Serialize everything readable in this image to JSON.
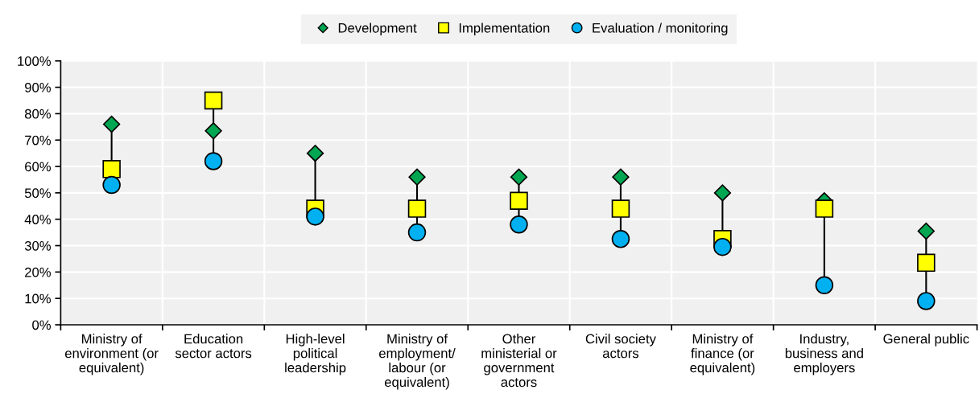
{
  "chart_data": {
    "type": "scatter",
    "categories": [
      "Ministry of environment (or equivalent)",
      "Education sector actors",
      "High-level political leadership",
      "Ministry of employment/ labour (or equivalent)",
      "Other ministerial or government actors",
      "Civil society actors",
      "Ministry of finance (or equivalent)",
      "Industry, business and employers",
      "General public"
    ],
    "series": [
      {
        "name": "Development",
        "color": "#00a651",
        "marker": "diamond",
        "values": [
          76,
          73.5,
          65,
          56,
          56,
          56,
          50,
          47,
          35.5
        ]
      },
      {
        "name": "Implementation",
        "color": "#ffff00",
        "marker": "square",
        "values": [
          59,
          85,
          44,
          44,
          47,
          44,
          32.5,
          44,
          23.5
        ]
      },
      {
        "name": "Evaluation / monitoring",
        "color": "#00b0f0",
        "marker": "circle",
        "values": [
          53,
          62,
          41,
          35,
          38,
          32.5,
          29.5,
          15,
          9
        ]
      }
    ],
    "ylim": [
      0,
      100
    ],
    "yticks": [
      {
        "value": 0,
        "label": "0%"
      },
      {
        "value": 10,
        "label": "10%"
      },
      {
        "value": 20,
        "label": "20%"
      },
      {
        "value": 30,
        "label": "30%"
      },
      {
        "value": 40,
        "label": "40%"
      },
      {
        "value": 50,
        "label": "50%"
      },
      {
        "value": 60,
        "label": "60%"
      },
      {
        "value": 70,
        "label": "70%"
      },
      {
        "value": 80,
        "label": "80%"
      },
      {
        "value": 90,
        "label": "90%"
      },
      {
        "value": 100,
        "label": "100%"
      }
    ],
    "grid": true,
    "legend": "top"
  }
}
